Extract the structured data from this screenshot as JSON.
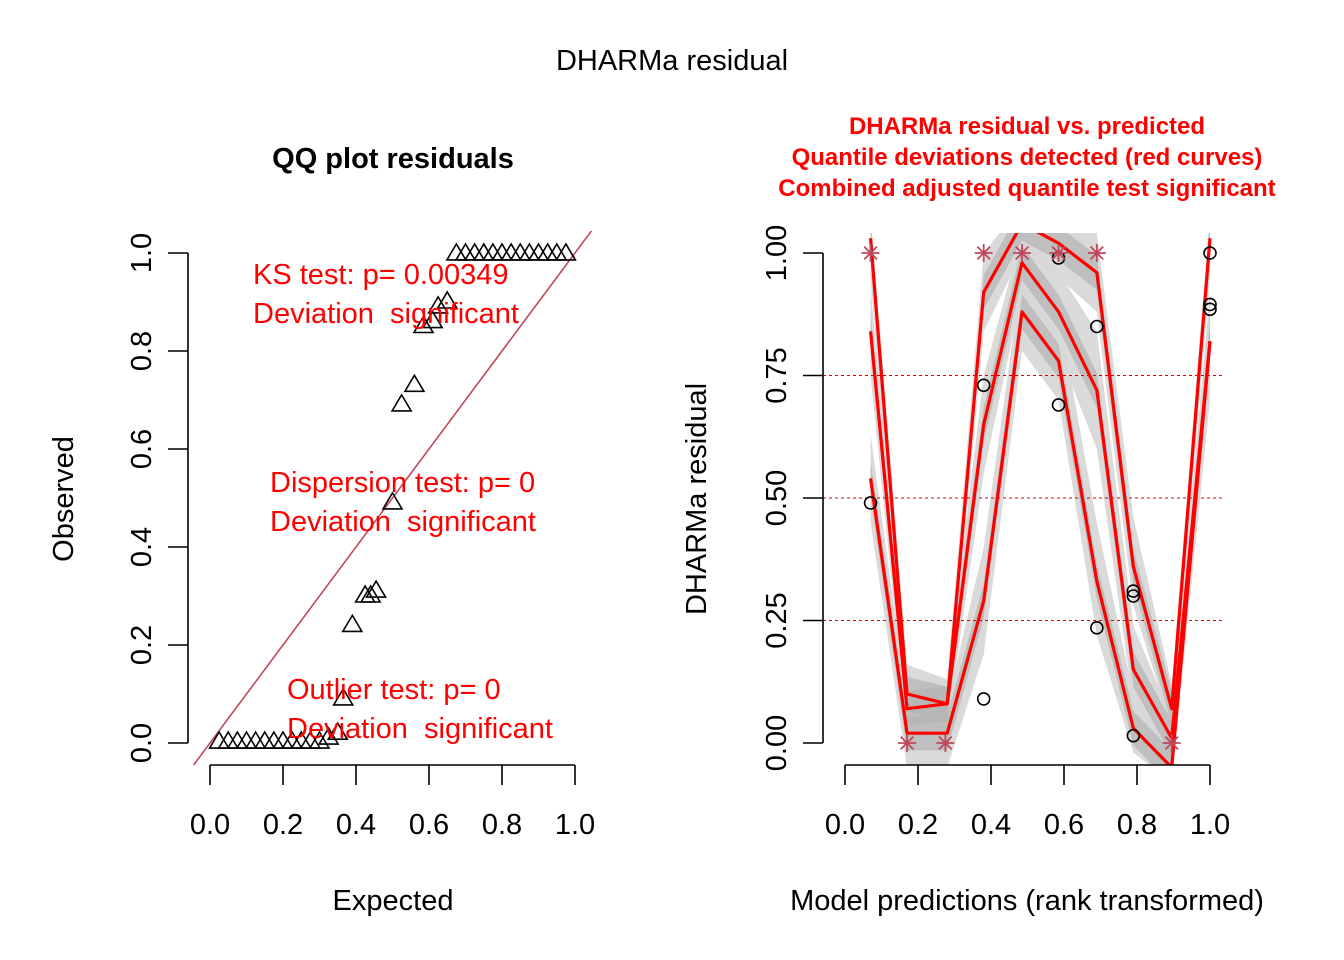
{
  "figure": {
    "title": "DHARMa residual"
  },
  "colors": {
    "qq_line": "#c0485a",
    "annotation": "#ff0000",
    "quantile_curve": "#ff0000",
    "outlier_star": "#c0485a",
    "band_light": "#d8d8d8",
    "band_dark": "#b4b4b4",
    "ref_line": "#dd0000",
    "points": "#000000"
  },
  "chart_data": [
    {
      "type": "scatter",
      "title": "QQ plot residuals",
      "xlabel": "Expected",
      "ylabel": "Observed",
      "xlim": [
        0,
        1
      ],
      "ylim": [
        0,
        1
      ],
      "x_ticks": [
        "0.0",
        "0.2",
        "0.4",
        "0.6",
        "0.8",
        "1.0"
      ],
      "y_ticks": [
        "0.0",
        "0.2",
        "0.4",
        "0.6",
        "0.8",
        "1.0"
      ],
      "marker": "triangle",
      "reference_line": "y = x",
      "grid": false,
      "annotations": [
        {
          "lines": [
            "KS test: p= 0.00349",
            "Deviation  significant"
          ]
        },
        {
          "lines": [
            "Dispersion test: p= 0",
            "Deviation  significant"
          ]
        },
        {
          "lines": [
            "Outlier test: p= 0",
            "Deviation  significant"
          ]
        }
      ],
      "points": [
        [
          0.025,
          0.002
        ],
        [
          0.05,
          0.002
        ],
        [
          0.075,
          0.002
        ],
        [
          0.1,
          0.002
        ],
        [
          0.125,
          0.002
        ],
        [
          0.15,
          0.002
        ],
        [
          0.175,
          0.002
        ],
        [
          0.2,
          0.002
        ],
        [
          0.225,
          0.002
        ],
        [
          0.25,
          0.002
        ],
        [
          0.275,
          0.002
        ],
        [
          0.3,
          0.002
        ],
        [
          0.325,
          0.01
        ],
        [
          0.35,
          0.02
        ],
        [
          0.365,
          0.09
        ],
        [
          0.39,
          0.24
        ],
        [
          0.425,
          0.3
        ],
        [
          0.44,
          0.3
        ],
        [
          0.455,
          0.31
        ],
        [
          0.5,
          0.49
        ],
        [
          0.525,
          0.69
        ],
        [
          0.56,
          0.73
        ],
        [
          0.585,
          0.85
        ],
        [
          0.61,
          0.86
        ],
        [
          0.625,
          0.89
        ],
        [
          0.65,
          0.9
        ],
        [
          0.675,
          0.998
        ],
        [
          0.7,
          0.998
        ],
        [
          0.725,
          0.998
        ],
        [
          0.75,
          0.998
        ],
        [
          0.775,
          0.998
        ],
        [
          0.8,
          0.998
        ],
        [
          0.825,
          0.998
        ],
        [
          0.85,
          0.998
        ],
        [
          0.875,
          0.998
        ],
        [
          0.9,
          0.998
        ],
        [
          0.925,
          0.998
        ],
        [
          0.95,
          0.998
        ],
        [
          0.975,
          0.998
        ]
      ]
    },
    {
      "type": "scatter",
      "title_lines": [
        "DHARMa residual vs. predicted",
        "Quantile deviations detected (red curves)",
        "Combined adjusted quantile test significant"
      ],
      "xlabel": "Model predictions (rank transformed)",
      "ylabel": "DHARMa residual",
      "xlim": [
        0,
        1
      ],
      "ylim": [
        0,
        1
      ],
      "x_ticks": [
        "0.0",
        "0.2",
        "0.4",
        "0.6",
        "0.8",
        "1.0"
      ],
      "y_ticks": [
        "0.00",
        "0.25",
        "0.50",
        "0.75",
        "1.00"
      ],
      "reference_lines_y": [
        0.25,
        0.5,
        0.75
      ],
      "grid": false,
      "points": [
        [
          0.07,
          0.49
        ],
        [
          0.38,
          0.73
        ],
        [
          0.38,
          0.09
        ],
        [
          0.585,
          0.99
        ],
        [
          0.585,
          0.69
        ],
        [
          0.69,
          0.85
        ],
        [
          0.69,
          0.235
        ],
        [
          0.79,
          0.3
        ],
        [
          0.79,
          0.31
        ],
        [
          0.79,
          0.015
        ],
        [
          1.0,
          1.0
        ],
        [
          1.0,
          0.895
        ],
        [
          1.0,
          0.885
        ]
      ],
      "outliers": [
        [
          0.07,
          1.0
        ],
        [
          0.17,
          0.0
        ],
        [
          0.275,
          0.0
        ],
        [
          0.38,
          1.0
        ],
        [
          0.485,
          1.0
        ],
        [
          0.585,
          1.0
        ],
        [
          0.69,
          1.0
        ],
        [
          0.895,
          0.0
        ]
      ],
      "quantile_curves": [
        {
          "quantile": 0.25,
          "x": [
            0.07,
            0.17,
            0.28,
            0.38,
            0.485,
            0.585,
            0.69,
            0.79,
            0.895,
            1.0
          ],
          "y": [
            0.54,
            0.02,
            0.02,
            0.29,
            0.88,
            0.78,
            0.33,
            0.03,
            -0.05,
            0.82
          ]
        },
        {
          "quantile": 0.5,
          "x": [
            0.07,
            0.17,
            0.28,
            0.38,
            0.485,
            0.585,
            0.69,
            0.79,
            0.895,
            1.0
          ],
          "y": [
            0.84,
            0.07,
            0.08,
            0.65,
            0.98,
            0.88,
            0.72,
            0.15,
            0.01,
            0.82
          ]
        },
        {
          "quantile": 0.75,
          "x": [
            0.07,
            0.17,
            0.28,
            0.38,
            0.485,
            0.585,
            0.69,
            0.79,
            0.895,
            1.0
          ],
          "y": [
            1.03,
            0.1,
            0.08,
            0.92,
            1.06,
            1.02,
            0.96,
            0.36,
            0.07,
            1.03
          ]
        }
      ],
      "quantile_bands": [
        {
          "quantile": 0.25,
          "lower": [
            0.45,
            -0.05,
            -0.05,
            0.18,
            0.8,
            0.7,
            0.22,
            -0.02,
            -0.08,
            0.7
          ],
          "upper": [
            0.63,
            0.08,
            0.08,
            0.4,
            0.96,
            0.88,
            0.45,
            0.1,
            0.02,
            0.92
          ]
        },
        {
          "quantile": 0.5,
          "lower": [
            0.75,
            0.02,
            0.03,
            0.55,
            0.92,
            0.8,
            0.6,
            0.08,
            -0.03,
            0.74
          ],
          "upper": [
            0.93,
            0.11,
            0.13,
            0.75,
            1.04,
            0.96,
            0.84,
            0.24,
            0.05,
            0.92
          ]
        },
        {
          "quantile": 0.75,
          "lower": [
            0.95,
            0.05,
            0.04,
            0.84,
            1.0,
            0.95,
            0.88,
            0.28,
            0.03,
            0.95
          ],
          "upper": [
            1.08,
            0.16,
            0.13,
            1.0,
            1.1,
            1.08,
            1.04,
            0.46,
            0.12,
            1.08
          ]
        }
      ]
    }
  ]
}
